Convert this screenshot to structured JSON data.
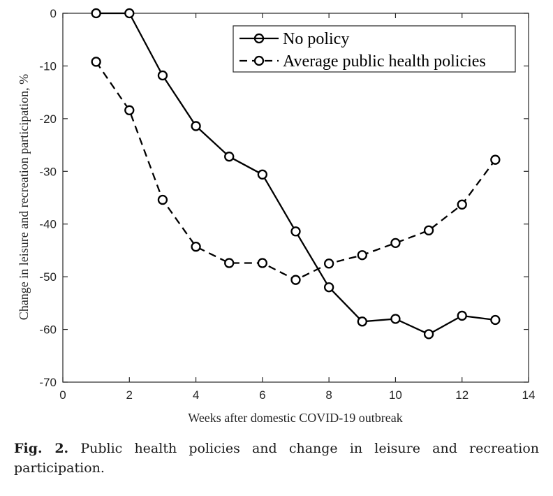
{
  "chart_data": {
    "type": "line",
    "title": "",
    "xlabel": "Weeks after domestic COVID-19 outbreak",
    "ylabel": "Change in leisure and recreation participation, %",
    "xlim": [
      0,
      14
    ],
    "ylim": [
      -70,
      0
    ],
    "xticks": [
      0,
      2,
      4,
      6,
      8,
      10,
      12,
      14
    ],
    "yticks": [
      0,
      -10,
      -20,
      -30,
      -40,
      -50,
      -60,
      -70
    ],
    "grid": false,
    "legend_position": "top-right",
    "series": [
      {
        "name": "No policy",
        "style": "solid",
        "marker": "circle",
        "x": [
          1,
          2,
          3,
          4,
          5,
          6,
          7,
          8,
          9,
          10,
          11,
          12,
          13
        ],
        "y": [
          0,
          0,
          -11.8,
          -21.4,
          -27.2,
          -30.6,
          -41.4,
          -52.0,
          -58.5,
          -58.0,
          -60.9,
          -57.4,
          -58.2
        ]
      },
      {
        "name": "Average public health policies",
        "style": "dashed",
        "marker": "circle",
        "x": [
          1,
          2,
          3,
          4,
          5,
          6,
          7,
          8,
          9,
          10,
          11,
          12,
          13
        ],
        "y": [
          -9.2,
          -18.4,
          -35.4,
          -44.3,
          -47.4,
          -47.4,
          -50.6,
          -47.5,
          -45.9,
          -43.6,
          -41.2,
          -36.3,
          -27.8
        ]
      }
    ]
  },
  "caption": {
    "label": "Fig. 2.",
    "text": "Public health policies and change in leisure and recreation participation."
  }
}
